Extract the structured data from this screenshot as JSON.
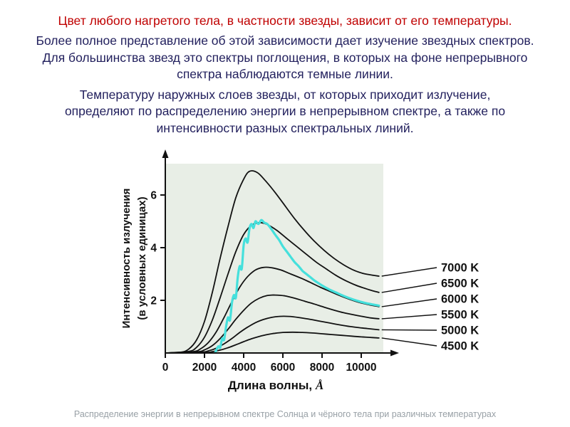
{
  "slide": {
    "paragraphs": [
      {
        "text": "Цвет любого нагретого тела, в частности звезды, зависит от его температуры.",
        "color": "#c00000"
      },
      {
        "text": "Более полное представление об этой зависимости дает изучение звездных спектров. Для большинства звезд это спектры поглощения, в которых на фоне непрерывного спектра наблюдаются темные линии.",
        "color": "#23215e"
      },
      {
        "text": "Температуру наружных слоев звезды, от которых приходит излучение, определяют по распределению энергии в непрерывном спектре, а также по интенсивности разных спектральных линий.",
        "color": "#23215e"
      }
    ],
    "caption": "Распределение энергии в непрерывном спектре Солнца и чёрного тела при различных температурах"
  },
  "chart_data": {
    "type": "line",
    "title": "",
    "xlabel": "Длина волны, Å",
    "xlabel_prefix": "Длина волны, ",
    "xlabel_unit": "Å",
    "ylabel": "Интенсивность излучения (в условных единицах)",
    "ylabel_lines": [
      "Интенсивность излучения",
      "(в условных единицах)"
    ],
    "xlim": [
      0,
      11000
    ],
    "ylim": [
      0,
      7
    ],
    "x_ticks": [
      0,
      2000,
      4000,
      6000,
      8000,
      10000
    ],
    "y_ticks": [
      2,
      4,
      6
    ],
    "grid": false,
    "legend_position": "right",
    "plot_bg": "#e8eee6",
    "curve_color": "#111111",
    "sun_color": "#45e0dc",
    "series": [
      {
        "name": "7000 K",
        "labeled": true,
        "color": "#111111",
        "width": 1.8,
        "points": [
          [
            0,
            0
          ],
          [
            800,
            0.03
          ],
          [
            1200,
            0.15
          ],
          [
            1600,
            0.5
          ],
          [
            2000,
            1.2
          ],
          [
            2400,
            2.3
          ],
          [
            2800,
            3.6
          ],
          [
            3200,
            4.8
          ],
          [
            3600,
            5.9
          ],
          [
            4000,
            6.6
          ],
          [
            4300,
            6.9
          ],
          [
            4700,
            6.85
          ],
          [
            5100,
            6.55
          ],
          [
            5600,
            6.1
          ],
          [
            6100,
            5.6
          ],
          [
            6600,
            5.1
          ],
          [
            7100,
            4.65
          ],
          [
            7600,
            4.25
          ],
          [
            8100,
            3.9
          ],
          [
            8600,
            3.6
          ],
          [
            9100,
            3.35
          ],
          [
            9600,
            3.15
          ],
          [
            10100,
            3.02
          ],
          [
            10600,
            2.95
          ],
          [
            10900,
            2.92
          ]
        ]
      },
      {
        "name": "6500 K",
        "labeled": true,
        "color": "#111111",
        "width": 1.8,
        "points": [
          [
            0,
            0
          ],
          [
            1200,
            0.06
          ],
          [
            1600,
            0.22
          ],
          [
            2000,
            0.6
          ],
          [
            2400,
            1.25
          ],
          [
            2800,
            2.1
          ],
          [
            3200,
            3.0
          ],
          [
            3600,
            3.85
          ],
          [
            4000,
            4.5
          ],
          [
            4400,
            4.85
          ],
          [
            4800,
            4.95
          ],
          [
            5200,
            4.88
          ],
          [
            5700,
            4.65
          ],
          [
            6200,
            4.35
          ],
          [
            6700,
            4.05
          ],
          [
            7200,
            3.75
          ],
          [
            7700,
            3.45
          ],
          [
            8200,
            3.2
          ],
          [
            8700,
            2.95
          ],
          [
            9200,
            2.75
          ],
          [
            9700,
            2.58
          ],
          [
            10200,
            2.45
          ],
          [
            10600,
            2.36
          ],
          [
            10900,
            2.3
          ]
        ]
      },
      {
        "name": "6000 K",
        "labeled": true,
        "color": "#111111",
        "width": 1.8,
        "points": [
          [
            0,
            0
          ],
          [
            1400,
            0.05
          ],
          [
            1800,
            0.16
          ],
          [
            2200,
            0.4
          ],
          [
            2600,
            0.8
          ],
          [
            3000,
            1.35
          ],
          [
            3400,
            1.95
          ],
          [
            3800,
            2.5
          ],
          [
            4200,
            2.9
          ],
          [
            4600,
            3.15
          ],
          [
            5000,
            3.25
          ],
          [
            5400,
            3.24
          ],
          [
            5900,
            3.15
          ],
          [
            6400,
            3.0
          ],
          [
            6900,
            2.85
          ],
          [
            7400,
            2.68
          ],
          [
            7900,
            2.5
          ],
          [
            8400,
            2.34
          ],
          [
            8900,
            2.18
          ],
          [
            9400,
            2.04
          ],
          [
            9900,
            1.92
          ],
          [
            10400,
            1.83
          ],
          [
            10900,
            1.76
          ]
        ]
      },
      {
        "name": "5500 K",
        "labeled": true,
        "color": "#111111",
        "width": 1.8,
        "points": [
          [
            0,
            0
          ],
          [
            1600,
            0.04
          ],
          [
            2000,
            0.12
          ],
          [
            2400,
            0.28
          ],
          [
            2800,
            0.55
          ],
          [
            3200,
            0.9
          ],
          [
            3600,
            1.28
          ],
          [
            4000,
            1.62
          ],
          [
            4400,
            1.9
          ],
          [
            4800,
            2.08
          ],
          [
            5200,
            2.18
          ],
          [
            5600,
            2.2
          ],
          [
            6100,
            2.17
          ],
          [
            6600,
            2.08
          ],
          [
            7100,
            1.97
          ],
          [
            7600,
            1.86
          ],
          [
            8100,
            1.74
          ],
          [
            8600,
            1.63
          ],
          [
            9100,
            1.53
          ],
          [
            9600,
            1.45
          ],
          [
            10100,
            1.38
          ],
          [
            10500,
            1.33
          ],
          [
            10900,
            1.3
          ]
        ]
      },
      {
        "name": "5000 K",
        "labeled": true,
        "color": "#111111",
        "width": 1.8,
        "points": [
          [
            0,
            0
          ],
          [
            1800,
            0.03
          ],
          [
            2200,
            0.08
          ],
          [
            2600,
            0.18
          ],
          [
            3000,
            0.35
          ],
          [
            3400,
            0.55
          ],
          [
            3800,
            0.78
          ],
          [
            4200,
            0.98
          ],
          [
            4600,
            1.15
          ],
          [
            5000,
            1.27
          ],
          [
            5400,
            1.35
          ],
          [
            5800,
            1.39
          ],
          [
            6300,
            1.39
          ],
          [
            6800,
            1.35
          ],
          [
            7300,
            1.29
          ],
          [
            7800,
            1.22
          ],
          [
            8300,
            1.15
          ],
          [
            8800,
            1.08
          ],
          [
            9300,
            1.02
          ],
          [
            9800,
            0.97
          ],
          [
            10300,
            0.93
          ],
          [
            10900,
            0.88
          ]
        ]
      },
      {
        "name": "4500 K",
        "labeled": true,
        "color": "#111111",
        "width": 1.8,
        "points": [
          [
            0,
            0
          ],
          [
            2000,
            0.02
          ],
          [
            2400,
            0.05
          ],
          [
            2800,
            0.11
          ],
          [
            3200,
            0.2
          ],
          [
            3600,
            0.31
          ],
          [
            4000,
            0.43
          ],
          [
            4400,
            0.54
          ],
          [
            4800,
            0.63
          ],
          [
            5200,
            0.7
          ],
          [
            5600,
            0.75
          ],
          [
            6000,
            0.78
          ],
          [
            6500,
            0.79
          ],
          [
            7000,
            0.78
          ],
          [
            7500,
            0.76
          ],
          [
            8000,
            0.73
          ],
          [
            8500,
            0.7
          ],
          [
            9000,
            0.67
          ],
          [
            9500,
            0.64
          ],
          [
            10000,
            0.61
          ],
          [
            10500,
            0.59
          ],
          [
            10900,
            0.57
          ]
        ]
      },
      {
        "name": "Солнце",
        "labeled": false,
        "color": "#45e0dc",
        "width": 3.2,
        "points": [
          [
            2550,
            0.02
          ],
          [
            2700,
            0.25
          ],
          [
            2800,
            0.2
          ],
          [
            2900,
            0.55
          ],
          [
            3000,
            0.5
          ],
          [
            3100,
            1.0
          ],
          [
            3200,
            1.35
          ],
          [
            3300,
            1.25
          ],
          [
            3400,
            1.9
          ],
          [
            3500,
            2.2
          ],
          [
            3600,
            2.1
          ],
          [
            3700,
            2.9
          ],
          [
            3800,
            3.3
          ],
          [
            3900,
            3.2
          ],
          [
            4000,
            4.1
          ],
          [
            4100,
            4.35
          ],
          [
            4200,
            4.2
          ],
          [
            4300,
            4.75
          ],
          [
            4400,
            4.9
          ],
          [
            4500,
            4.75
          ],
          [
            4600,
            5.0
          ],
          [
            4750,
            4.9
          ],
          [
            4900,
            5.05
          ],
          [
            5050,
            4.95
          ],
          [
            5200,
            4.9
          ],
          [
            5400,
            4.72
          ],
          [
            5600,
            4.5
          ],
          [
            5800,
            4.3
          ],
          [
            6000,
            4.05
          ],
          [
            6200,
            3.85
          ],
          [
            6400,
            3.65
          ],
          [
            6600,
            3.45
          ],
          [
            6800,
            3.3
          ],
          [
            7000,
            3.12
          ],
          [
            7200,
            3.0
          ],
          [
            7400,
            2.88
          ],
          [
            7600,
            2.76
          ],
          [
            7800,
            2.66
          ],
          [
            8100,
            2.52
          ],
          [
            8400,
            2.4
          ],
          [
            8700,
            2.3
          ],
          [
            9000,
            2.2
          ],
          [
            9400,
            2.08
          ],
          [
            9800,
            1.98
          ],
          [
            10200,
            1.9
          ],
          [
            10600,
            1.84
          ],
          [
            10900,
            1.8
          ]
        ]
      }
    ]
  }
}
